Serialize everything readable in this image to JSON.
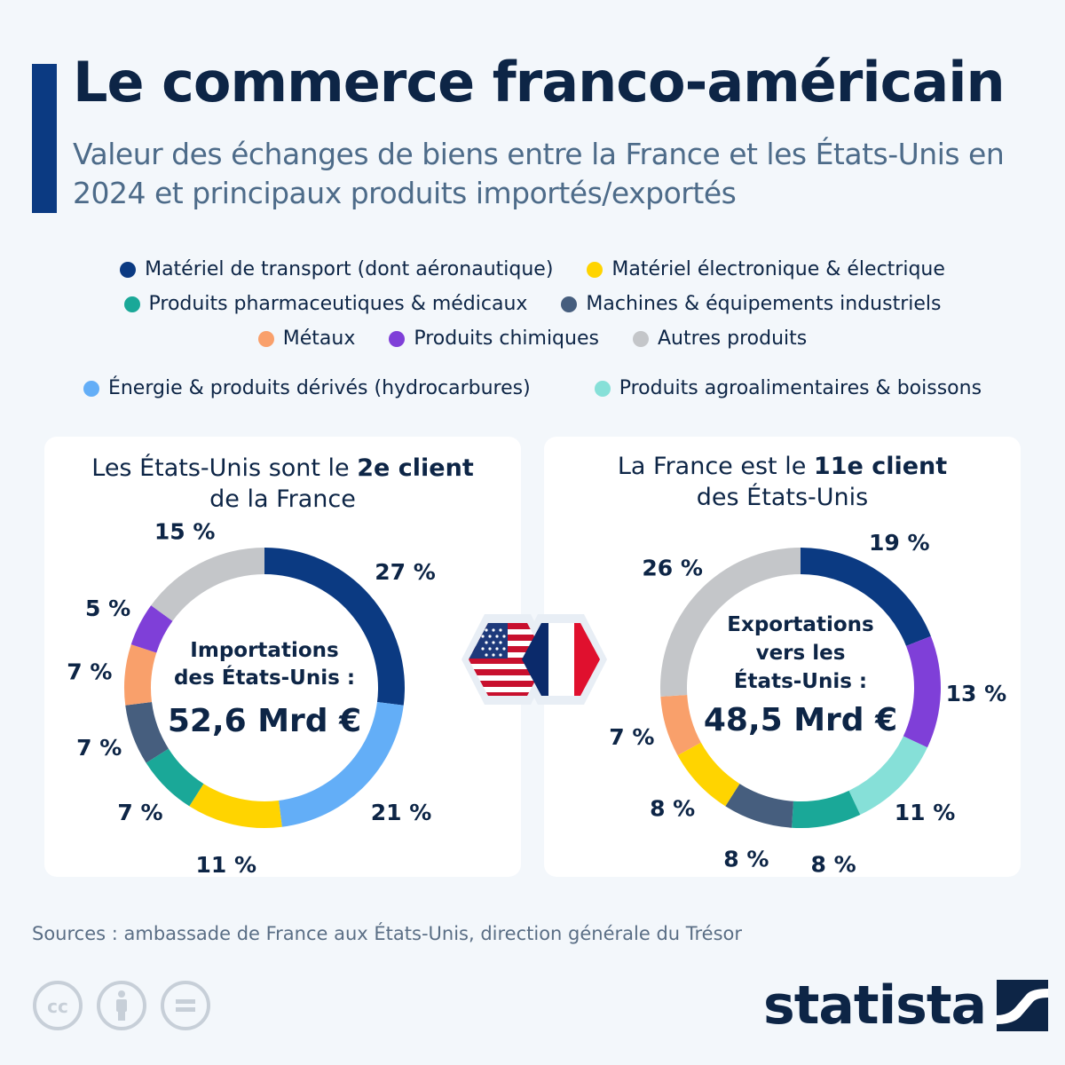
{
  "header": {
    "title": "Le commerce franco-américain",
    "subtitle": "Valeur des échanges de biens entre la France et les États-Unis en 2024 et principaux produits importés/exportés"
  },
  "legend": [
    {
      "label": "Matériel de transport (dont aéronautique)",
      "color": "#0b3a82"
    },
    {
      "label": "Matériel électronique & électrique",
      "color": "#ffd400"
    },
    {
      "label": "Produits pharmaceutiques & médicaux",
      "color": "#1aa898"
    },
    {
      "label": "Machines & équipements industriels",
      "color": "#465e7e"
    },
    {
      "label": "Métaux",
      "color": "#f9a06b"
    },
    {
      "label": "Produits chimiques",
      "color": "#7f3fd8"
    },
    {
      "label": "Autres produits",
      "color": "#c4c6c9"
    },
    {
      "label": "Énergie & produits dérivés (hydrocarbures)",
      "color": "#63aef7"
    },
    {
      "label": "Produits agroalimentaires & boissons",
      "color": "#86e0d8"
    }
  ],
  "panels": {
    "left": {
      "heading_pre": "Les États-Unis sont le ",
      "heading_bold": "2e client",
      "heading_post": "de la France",
      "center_line1": "Importations",
      "center_line2": "des États-Unis :",
      "center_value": "52,6 Mrd €"
    },
    "right": {
      "heading_pre": "La France est le ",
      "heading_bold": "11e client",
      "heading_post": "des États-Unis",
      "center_line1": "Exportations",
      "center_line2": "vers les",
      "center_line3": "États-Unis :",
      "center_value": "48,5 Mrd €"
    }
  },
  "chart_data": [
    {
      "type": "pie",
      "variant": "donut",
      "total_label": "52,6 Mrd €",
      "slices": [
        {
          "category": "Matériel de transport (dont aéronautique)",
          "value": 27,
          "label": "27 %",
          "color": "#0b3a82"
        },
        {
          "category": "Énergie & produits dérivés (hydrocarbures)",
          "value": 21,
          "label": "21 %",
          "color": "#63aef7"
        },
        {
          "category": "Matériel électronique & électrique",
          "value": 11,
          "label": "11 %",
          "color": "#ffd400"
        },
        {
          "category": "Produits pharmaceutiques & médicaux",
          "value": 7,
          "label": "7 %",
          "color": "#1aa898"
        },
        {
          "category": "Machines & équipements industriels",
          "value": 7,
          "label": "7 %",
          "color": "#465e7e"
        },
        {
          "category": "Métaux",
          "value": 7,
          "label": "7 %",
          "color": "#f9a06b"
        },
        {
          "category": "Produits chimiques",
          "value": 5,
          "label": "5 %",
          "color": "#7f3fd8"
        },
        {
          "category": "Autres produits",
          "value": 15,
          "label": "15 %",
          "color": "#c4c6c9"
        }
      ]
    },
    {
      "type": "pie",
      "variant": "donut",
      "total_label": "48,5 Mrd €",
      "slices": [
        {
          "category": "Matériel de transport (dont aéronautique)",
          "value": 19,
          "label": "19 %",
          "color": "#0b3a82"
        },
        {
          "category": "Produits chimiques",
          "value": 13,
          "label": "13 %",
          "color": "#7f3fd8"
        },
        {
          "category": "Produits agroalimentaires & boissons",
          "value": 11,
          "label": "11 %",
          "color": "#86e0d8"
        },
        {
          "category": "Produits pharmaceutiques & médicaux",
          "value": 8,
          "label": "8 %",
          "color": "#1aa898"
        },
        {
          "category": "Machines & équipements industriels",
          "value": 8,
          "label": "8 %",
          "color": "#465e7e"
        },
        {
          "category": "Matériel électronique & électrique",
          "value": 8,
          "label": "8 %",
          "color": "#ffd400"
        },
        {
          "category": "Métaux",
          "value": 7,
          "label": "7 %",
          "color": "#f9a06b"
        },
        {
          "category": "Autres produits",
          "value": 26,
          "label": "26 %",
          "color": "#c4c6c9"
        }
      ]
    }
  ],
  "footer": {
    "source": "Sources : ambassade de France aux États-Unis, direction générale du Trésor",
    "brand": "statista"
  },
  "icons": [
    "cc-icon",
    "attribution-icon",
    "no-derivatives-icon",
    "us-flag-icon",
    "france-flag-icon",
    "statista-logo-icon"
  ]
}
